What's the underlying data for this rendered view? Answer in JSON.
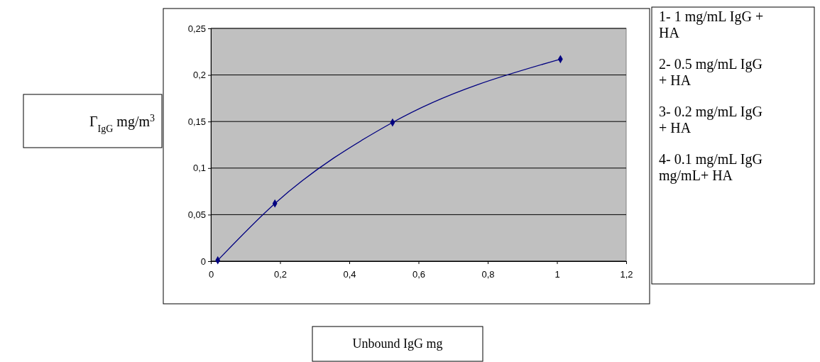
{
  "chart_data": {
    "type": "line",
    "xlabel": "Unbound IgG mg",
    "ylabel": "Γ$_{IgG}$ mg/m$^{3}$",
    "x": [
      0.02,
      0.185,
      0.525,
      1.01
    ],
    "series": [
      {
        "color": "#000080",
        "values": [
          0.001,
          0.062,
          0.149,
          0.217
        ]
      }
    ],
    "marker": "diamond",
    "line_style": "solid",
    "grid": "y",
    "xlim": [
      0,
      1.2
    ],
    "xticks": [
      0,
      {
        "value": 0.2,
        "label": "0,2"
      },
      {
        "value": 0.4,
        "label": "0,4"
      },
      {
        "value": 0.6,
        "label": "0,6"
      },
      {
        "value": 0.8,
        "label": "0,8"
      },
      1,
      {
        "value": 1.2,
        "label": "1,2"
      }
    ],
    "ylim": [
      0,
      0.25
    ],
    "yticks": [
      0,
      {
        "value": 0.05,
        "label": "0,05"
      },
      {
        "value": 0.1,
        "label": "0,1"
      },
      {
        "value": 0.15,
        "label": "0,15"
      },
      {
        "value": 0.2,
        "label": "0,2"
      },
      {
        "value": 0.25,
        "label": "0,25"
      }
    ],
    "annotations": [
      "1- 1 mg/mL IgG + HA",
      "2- 0.5 mg/mL IgG + HA",
      "3- 0.2 mg/mL IgG + HA",
      "4- 0.1 mg/mL IgG mg/mL+ HA"
    ]
  }
}
